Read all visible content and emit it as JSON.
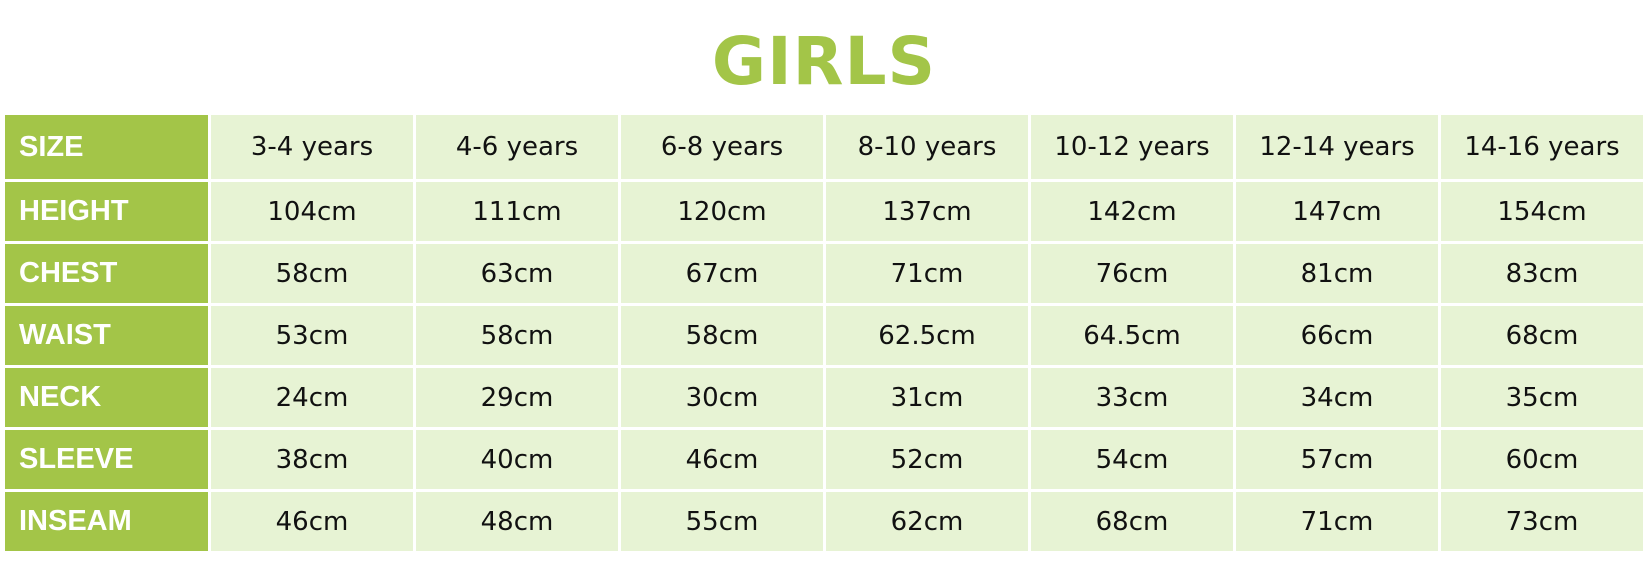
{
  "title": "GIRLS",
  "colors": {
    "accent": "#a3c548",
    "cell_bg": "#e7f3d4"
  },
  "table": {
    "rows": [
      {
        "label": "SIZE",
        "values": [
          "3-4 years",
          "4-6 years",
          "6-8 years",
          "8-10 years",
          "10-12 years",
          "12-14 years",
          "14-16 years"
        ]
      },
      {
        "label": "HEIGHT",
        "values": [
          "104cm",
          "111cm",
          "120cm",
          "137cm",
          "142cm",
          "147cm",
          "154cm"
        ]
      },
      {
        "label": "CHEST",
        "values": [
          "58cm",
          "63cm",
          "67cm",
          "71cm",
          "76cm",
          "81cm",
          "83cm"
        ]
      },
      {
        "label": "WAIST",
        "values": [
          "53cm",
          "58cm",
          "58cm",
          "62.5cm",
          "64.5cm",
          "66cm",
          "68cm"
        ]
      },
      {
        "label": "NECK",
        "values": [
          "24cm",
          "29cm",
          "30cm",
          "31cm",
          "33cm",
          "34cm",
          "35cm"
        ]
      },
      {
        "label": "SLEEVE",
        "values": [
          "38cm",
          "40cm",
          "46cm",
          "52cm",
          "54cm",
          "57cm",
          "60cm"
        ]
      },
      {
        "label": "INSEAM",
        "values": [
          "46cm",
          "48cm",
          "55cm",
          "62cm",
          "68cm",
          "71cm",
          "73cm"
        ]
      }
    ]
  }
}
